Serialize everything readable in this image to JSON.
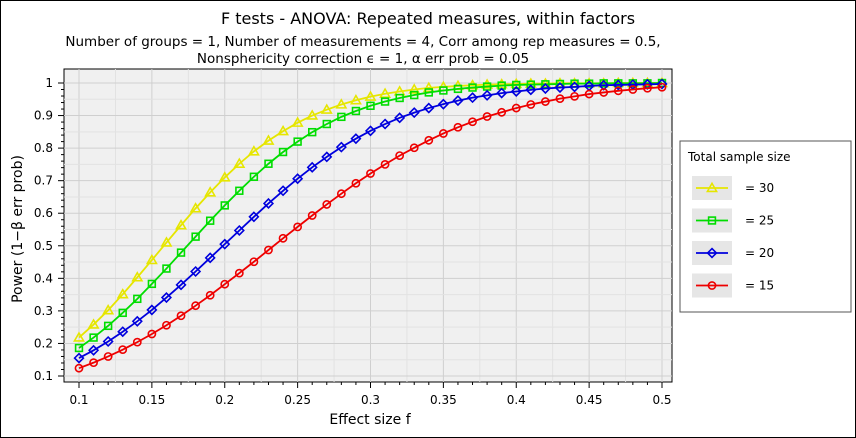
{
  "chart_data": {
    "type": "line",
    "title": "F tests - ANOVA: Repeated measures, within factors",
    "subtitle_lines": [
      "Number of groups = 1, Number of measurements = 4, Corr among rep measures = 0.5,",
      "Nonsphericity correction ϵ = 1, α err prob = 0.05"
    ],
    "xlabel": "Effect size f",
    "ylabel": "Power (1−β err prob)",
    "xlim": [
      0.1,
      0.5
    ],
    "ylim": [
      0.1,
      1.0
    ],
    "xticks": [
      0.1,
      0.15,
      0.2,
      0.25,
      0.3,
      0.35,
      0.4,
      0.45,
      0.5
    ],
    "xtick_labels": [
      "0.1",
      "0.15",
      "0.2",
      "0.25",
      "0.3",
      "0.35",
      "0.4",
      "0.45",
      "0.5"
    ],
    "yticks": [
      0.1,
      0.2,
      0.3,
      0.4,
      0.5,
      0.6,
      0.7,
      0.8,
      0.9,
      1.0
    ],
    "ytick_labels": [
      "0.1",
      "0.2",
      "0.3",
      "0.4",
      "0.5",
      "0.6",
      "0.7",
      "0.8",
      "0.9",
      "1"
    ],
    "grid": true,
    "legend": {
      "title": "Total sample size",
      "placement": "right"
    },
    "x": [
      0.1,
      0.11,
      0.12,
      0.13,
      0.14,
      0.15,
      0.16,
      0.17,
      0.18,
      0.19,
      0.2,
      0.21,
      0.22,
      0.23,
      0.24,
      0.25,
      0.26,
      0.27,
      0.28,
      0.29,
      0.3,
      0.31,
      0.32,
      0.33,
      0.34,
      0.35,
      0.36,
      0.37,
      0.38,
      0.39,
      0.4,
      0.41,
      0.42,
      0.43,
      0.44,
      0.45,
      0.46,
      0.47,
      0.48,
      0.49,
      0.5
    ],
    "series": [
      {
        "name": "= 30",
        "color": "#e6e600",
        "marker": "triangle",
        "values": [
          0.218,
          0.258,
          0.302,
          0.351,
          0.403,
          0.456,
          0.51,
          0.563,
          0.615,
          0.664,
          0.71,
          0.752,
          0.79,
          0.823,
          0.852,
          0.878,
          0.9,
          0.918,
          0.934,
          0.947,
          0.958,
          0.967,
          0.974,
          0.98,
          0.985,
          0.988,
          0.991,
          0.993,
          0.995,
          0.996,
          0.997,
          0.998,
          0.998,
          0.999,
          0.999,
          0.999,
          0.999,
          1.0,
          1.0,
          1.0,
          1.0
        ]
      },
      {
        "name": "= 25",
        "color": "#00dd00",
        "marker": "square",
        "values": [
          0.186,
          0.218,
          0.254,
          0.294,
          0.337,
          0.383,
          0.43,
          0.479,
          0.528,
          0.577,
          0.624,
          0.669,
          0.712,
          0.752,
          0.788,
          0.82,
          0.849,
          0.874,
          0.896,
          0.914,
          0.93,
          0.943,
          0.954,
          0.963,
          0.971,
          0.977,
          0.982,
          0.986,
          0.989,
          0.992,
          0.994,
          0.995,
          0.996,
          0.997,
          0.998,
          0.998,
          0.999,
          0.999,
          0.999,
          0.999,
          1.0
        ]
      },
      {
        "name": "= 20",
        "color": "#0000dd",
        "marker": "diamond",
        "values": [
          0.155,
          0.179,
          0.206,
          0.236,
          0.268,
          0.303,
          0.341,
          0.38,
          0.421,
          0.463,
          0.505,
          0.547,
          0.589,
          0.63,
          0.669,
          0.706,
          0.741,
          0.773,
          0.803,
          0.829,
          0.853,
          0.874,
          0.893,
          0.909,
          0.923,
          0.935,
          0.946,
          0.955,
          0.962,
          0.969,
          0.974,
          0.979,
          0.983,
          0.986,
          0.988,
          0.991,
          0.993,
          0.994,
          0.995,
          0.996,
          0.997
        ]
      },
      {
        "name": "= 15",
        "color": "#ee0000",
        "marker": "circle",
        "values": [
          0.124,
          0.141,
          0.16,
          0.181,
          0.204,
          0.229,
          0.256,
          0.285,
          0.316,
          0.348,
          0.382,
          0.416,
          0.451,
          0.487,
          0.523,
          0.558,
          0.593,
          0.627,
          0.66,
          0.692,
          0.722,
          0.75,
          0.777,
          0.801,
          0.824,
          0.845,
          0.864,
          0.881,
          0.897,
          0.91,
          0.923,
          0.934,
          0.943,
          0.952,
          0.959,
          0.966,
          0.971,
          0.976,
          0.98,
          0.984,
          0.987
        ]
      }
    ]
  }
}
